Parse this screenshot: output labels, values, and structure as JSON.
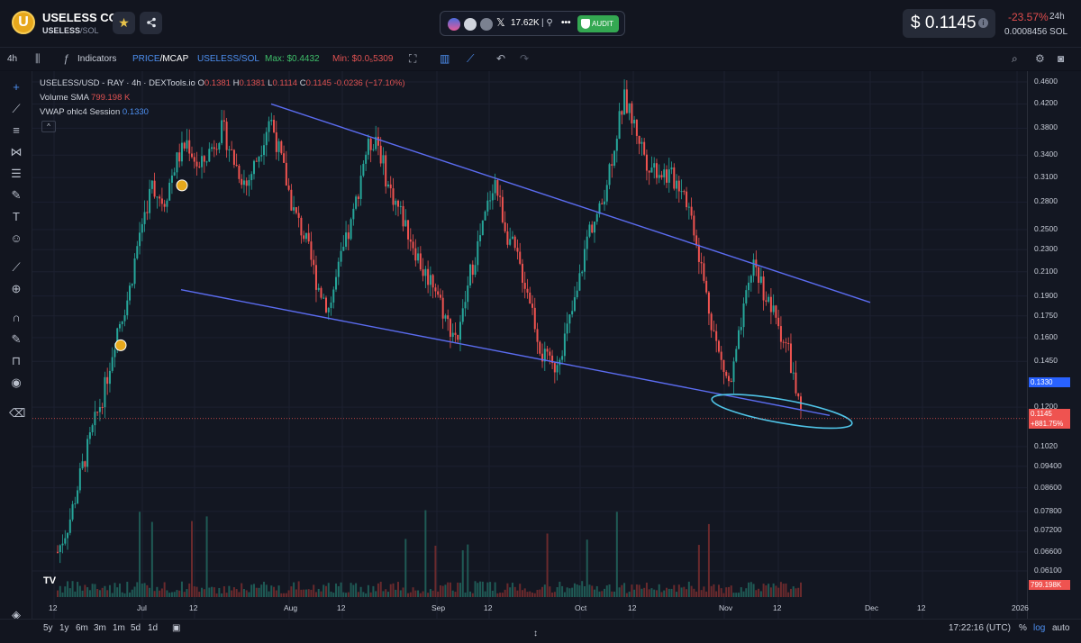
{
  "header": {
    "logo_letter": "U",
    "coin_name": "USELESS COIN",
    "pair_base": "USELESS",
    "pair_sep": "/",
    "pair_quote": "SOL",
    "star_icon": "star-icon",
    "share_icon": "share-icon",
    "socials": {
      "followers": "17.62K",
      "audit_label": "AUDIT"
    },
    "price": "$ 0.1145",
    "info_icon": "i",
    "change_pct": "-23.57%",
    "change_period": "24h",
    "sol_price": "0.0008456 SOL",
    "colors": {
      "accent_up": "#34a852",
      "accent_down": "#e04d4d",
      "coin": "#e7a81c"
    }
  },
  "toolbar": {
    "interval": "4h",
    "indicators_label": "Indicators",
    "price_label": "PRICE",
    "mcap_label": "/MCAP",
    "pair_label": "USELESS/SOL",
    "max_label": "Max: $0.4432",
    "min_label": "Min: $0.0₅5309"
  },
  "chart": {
    "legend_main_prefix": "USELESS/USD - RAY · 4h · DEXTools.io",
    "o_label": "O",
    "o_value": "0.1381",
    "h_label": "H",
    "h_value": "0.1381",
    "l_label": "L",
    "l_value": "0.1114",
    "c_label": "C",
    "c_value": "0.1145",
    "chg": "-0.0236 (−17.10%)",
    "volume_label": "Volume SMA",
    "volume_value": "799.198 K",
    "vwap_label": "VWAP ohlc4 Session",
    "vwap_value": "0.1330",
    "collapse_icon": "^"
  },
  "chart_data": {
    "type": "candlestick",
    "title": "USELESS/USD - RAY · 4h · DEXTools.io",
    "scale": "log",
    "x_ticks": [
      "12",
      "Jul",
      "12",
      "Aug",
      "12",
      "Sep",
      "12",
      "Oct",
      "12",
      "Nov",
      "12",
      "Dec",
      "12",
      "2026"
    ],
    "y_ticks": [
      "0.4600",
      "0.4200",
      "0.3800",
      "0.3400",
      "0.3100",
      "0.2800",
      "0.2500",
      "0.2300",
      "0.2100",
      "0.1900",
      "0.1750",
      "0.1600",
      "0.1450",
      "0.1200",
      "0.1020",
      "0.09400",
      "0.08600",
      "0.07800",
      "0.07200",
      "0.06600",
      "0.06100"
    ],
    "ylim": [
      0.056,
      0.48
    ],
    "price_path_points": [
      0.066,
      0.075,
      0.092,
      0.11,
      0.13,
      0.165,
      0.19,
      0.25,
      0.3,
      0.28,
      0.33,
      0.36,
      0.32,
      0.35,
      0.38,
      0.33,
      0.3,
      0.34,
      0.4,
      0.33,
      0.27,
      0.24,
      0.2,
      0.18,
      0.22,
      0.26,
      0.34,
      0.37,
      0.3,
      0.27,
      0.24,
      0.21,
      0.2,
      0.17,
      0.16,
      0.21,
      0.25,
      0.31,
      0.25,
      0.22,
      0.19,
      0.15,
      0.14,
      0.16,
      0.19,
      0.25,
      0.27,
      0.34,
      0.43,
      0.38,
      0.33,
      0.32,
      0.31,
      0.3,
      0.25,
      0.19,
      0.15,
      0.13,
      0.17,
      0.22,
      0.19,
      0.17,
      0.15,
      0.1145
    ],
    "trendline_upper": {
      "from": {
        "date": "Jul 27",
        "price": 0.42
      },
      "to": {
        "date": "Dec 1",
        "price": 0.185
      }
    },
    "trendline_lower": {
      "from": {
        "date": "Jul 7",
        "price": 0.195
      },
      "to": {
        "date": "Nov 21",
        "price": 0.116
      }
    },
    "last_price": "0.1145",
    "last_change": "+881.75%",
    "vwap": "0.1330",
    "volume_last": "799.198K"
  },
  "bottombar": {
    "ranges": [
      "5y",
      "1y",
      "6m",
      "3m",
      "1m",
      "5d",
      "1d"
    ],
    "time": "17:22:16 (UTC)",
    "pct": "%",
    "log": "log",
    "auto": "auto"
  }
}
